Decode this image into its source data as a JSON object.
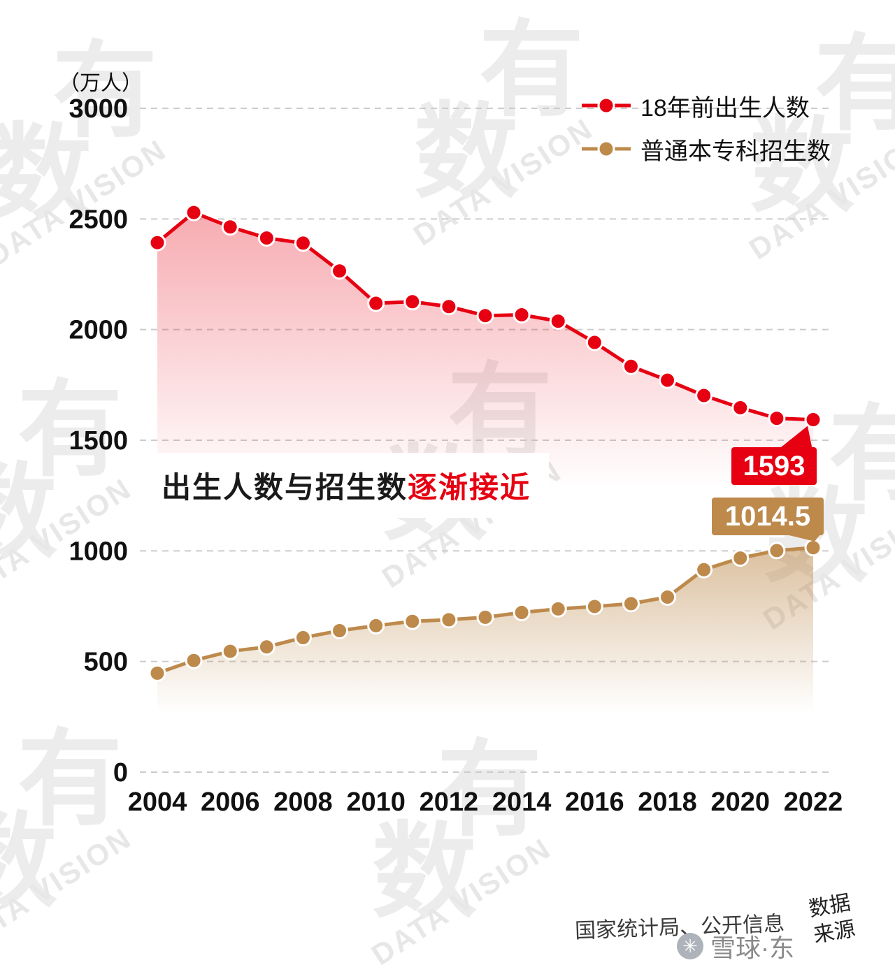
{
  "watermark": {
    "cn_1": "有",
    "cn_2": "数",
    "en": "DATA VISION"
  },
  "chart": {
    "unit_label": "（万人）",
    "legend": [
      {
        "label": "18年前出生人数",
        "color": "#e60012"
      },
      {
        "label": "普通本专科招生数",
        "color": "#bd8a4c"
      }
    ],
    "annotation": {
      "text_black": "出生人数与招生数",
      "text_red": "逐渐接近"
    },
    "callouts": [
      {
        "text": "1593",
        "color": "#e60012"
      },
      {
        "text": "1014.5",
        "color": "#bd8a4c"
      }
    ]
  },
  "chart_data": {
    "type": "line",
    "title": "出生人数与招生数逐渐接近",
    "ylabel": "（万人）",
    "ylim": [
      0,
      3000
    ],
    "yticks": [
      0,
      500,
      1000,
      1500,
      2000,
      2500,
      3000
    ],
    "x": [
      2004,
      2005,
      2006,
      2007,
      2008,
      2009,
      2010,
      2011,
      2012,
      2013,
      2014,
      2015,
      2016,
      2017,
      2018,
      2019,
      2020,
      2021,
      2022
    ],
    "xticks": [
      2004,
      2006,
      2008,
      2010,
      2012,
      2014,
      2016,
      2018,
      2020,
      2022
    ],
    "grid": "dashed-horizontal",
    "legend_position": "top-right",
    "series": [
      {
        "name": "18年前出生人数",
        "color": "#e60012",
        "values": [
          2393,
          2529,
          2464,
          2414,
          2391,
          2265,
          2119,
          2126,
          2104,
          2063,
          2067,
          2038,
          1942,
          1834,
          1771,
          1702,
          1647,
          1599,
          1593
        ]
      },
      {
        "name": "普通本专科招生数",
        "color": "#bd8a4c",
        "values": [
          447.3,
          504.5,
          546.1,
          565.9,
          607.7,
          639.5,
          661.8,
          681.5,
          688.8,
          699.8,
          721.4,
          737.8,
          748.6,
          761.5,
          791,
          914.9,
          967.5,
          1001.3,
          1014.5
        ]
      }
    ],
    "last_value_labels": [
      "1593",
      "1014.5"
    ]
  },
  "footer": {
    "source_text": "国家统计局、公开信息",
    "source_label_line1": "数据",
    "source_label_line2": "来源",
    "brand": "雪球·东",
    "brand_icon": "snowball-logo"
  }
}
